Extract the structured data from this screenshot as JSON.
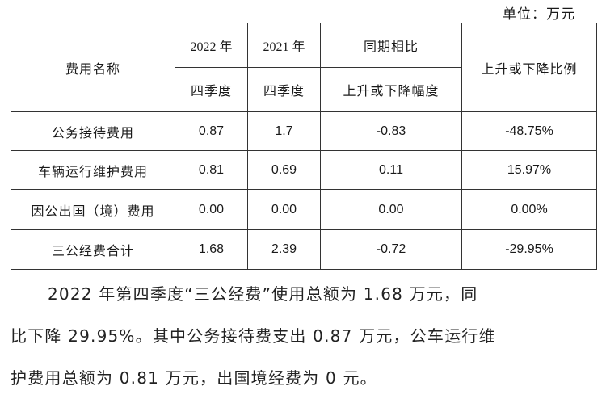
{
  "unit_label": "单位：万元",
  "table": {
    "header": {
      "name_col": "费用名称",
      "year_2022": "2022 年",
      "year_2021": "2021 年",
      "quarter_2022": "四季度",
      "quarter_2021": "四季度",
      "yoy": "同期相比",
      "change_amount": "上升或下降幅度",
      "change_ratio": "上升或下降比例"
    },
    "rows": [
      {
        "name": "公务接待费用",
        "v2022": "0.87",
        "v2021": "1.7",
        "change": "-0.83",
        "ratio": "-48.75%"
      },
      {
        "name": "车辆运行维护费用",
        "v2022": "0.81",
        "v2021": "0.69",
        "change": "0.11",
        "ratio": "15.97%"
      },
      {
        "name": "因公出国（境）费用",
        "v2022": "0.00",
        "v2021": "0.00",
        "change": "0.00",
        "ratio": "0.00%"
      },
      {
        "name": "三公经费合计",
        "v2022": "1.68",
        "v2021": "2.39",
        "change": "-0.72",
        "ratio": "-29.95%"
      }
    ]
  },
  "paragraph": {
    "line1": "2022 年第四季度“三公经费”使用总额为 1.68 万元，同",
    "line2": "比下降 29.95%。其中公务接待费支出 0.87 万元，公车运行维",
    "line3": "护费用总额为 0.81 万元，出国境经费为 0 元。"
  }
}
